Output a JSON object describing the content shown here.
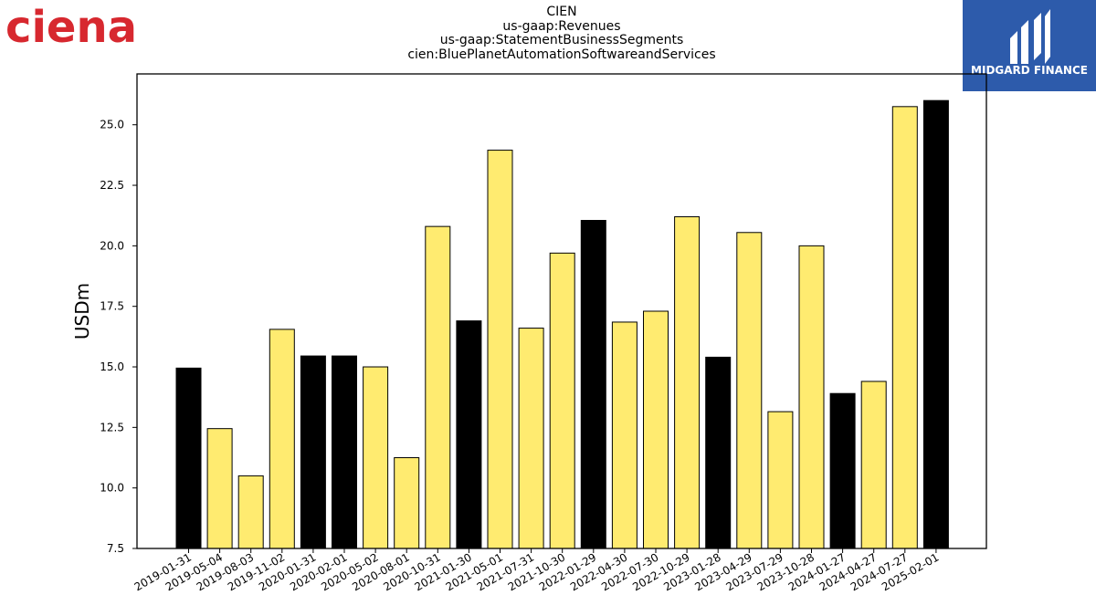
{
  "header": {
    "title_lines": [
      "CIEN",
      "us-gaap:Revenues",
      "us-gaap:StatementBusinessSegments",
      "cien:BluePlanetAutomationSoftwareandServices"
    ]
  },
  "logos": {
    "left_text": "ciena",
    "right_text": "MIDGARD FINANCE"
  },
  "colors": {
    "highlight": "#000000",
    "normal": "#ffeb70",
    "logo_red": "#d7282f",
    "logo_blue": "#2d5bab"
  },
  "chart_data": {
    "type": "bar",
    "ylabel": "USDm",
    "ylim": [
      7.5,
      27.1
    ],
    "yticks": [
      7.5,
      10.0,
      12.5,
      15.0,
      17.5,
      20.0,
      22.5,
      25.0
    ],
    "ytick_labels": [
      "7.5",
      "10.0",
      "12.5",
      "15.0",
      "17.5",
      "20.0",
      "22.5",
      "25.0"
    ],
    "categories": [
      "2019-01-31",
      "2019-05-04",
      "2019-08-03",
      "2019-11-02",
      "2020-01-31",
      "2020-02-01",
      "2020-05-02",
      "2020-08-01",
      "2020-10-31",
      "2021-01-30",
      "2021-05-01",
      "2021-07-31",
      "2021-10-30",
      "2022-01-29",
      "2022-04-30",
      "2022-07-30",
      "2022-10-29",
      "2023-01-28",
      "2023-04-29",
      "2023-07-29",
      "2023-10-28",
      "2024-01-27",
      "2024-04-27",
      "2024-07-27",
      "2025-02-01"
    ],
    "values": [
      14.95,
      12.45,
      10.5,
      16.55,
      15.45,
      15.45,
      15.0,
      11.25,
      20.8,
      16.9,
      23.95,
      16.6,
      19.7,
      21.05,
      16.85,
      17.3,
      21.2,
      15.4,
      20.55,
      13.15,
      20.0,
      13.9,
      14.4,
      25.75,
      26.0
    ],
    "highlight": [
      true,
      false,
      false,
      false,
      true,
      true,
      false,
      false,
      false,
      true,
      false,
      false,
      false,
      true,
      false,
      false,
      false,
      true,
      false,
      false,
      false,
      true,
      false,
      false,
      true
    ]
  }
}
